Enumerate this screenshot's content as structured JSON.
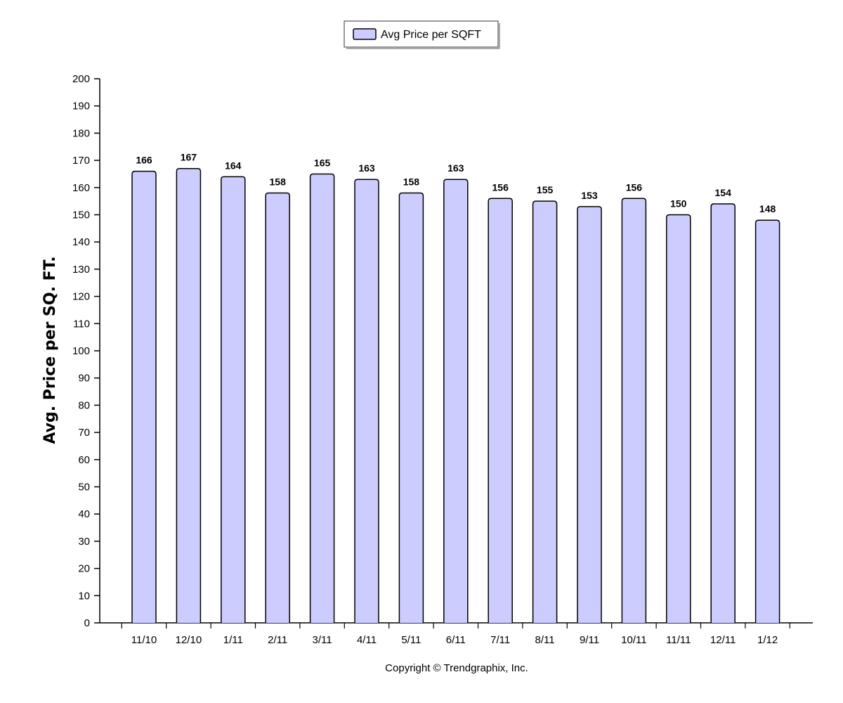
{
  "chart_data": {
    "type": "bar",
    "title": "",
    "xlabel": "",
    "ylabel": "Avg. Price per SQ. FT.",
    "categories": [
      "11/10",
      "12/10",
      "1/11",
      "2/11",
      "3/11",
      "4/11",
      "5/11",
      "6/11",
      "7/11",
      "8/11",
      "9/11",
      "10/11",
      "11/11",
      "12/11",
      "1/12"
    ],
    "series": [
      {
        "name": "Avg Price per SQFT",
        "values": [
          166,
          167,
          164,
          158,
          165,
          163,
          158,
          163,
          156,
          155,
          153,
          156,
          150,
          154,
          148
        ],
        "color": "#ccccff"
      }
    ],
    "ylim": [
      0,
      200
    ],
    "ytick_step": 10,
    "grid": false,
    "legend_position": "top-center",
    "data_labels": true
  },
  "footer": {
    "copyright": "Copyright © Trendgraphix, Inc."
  }
}
